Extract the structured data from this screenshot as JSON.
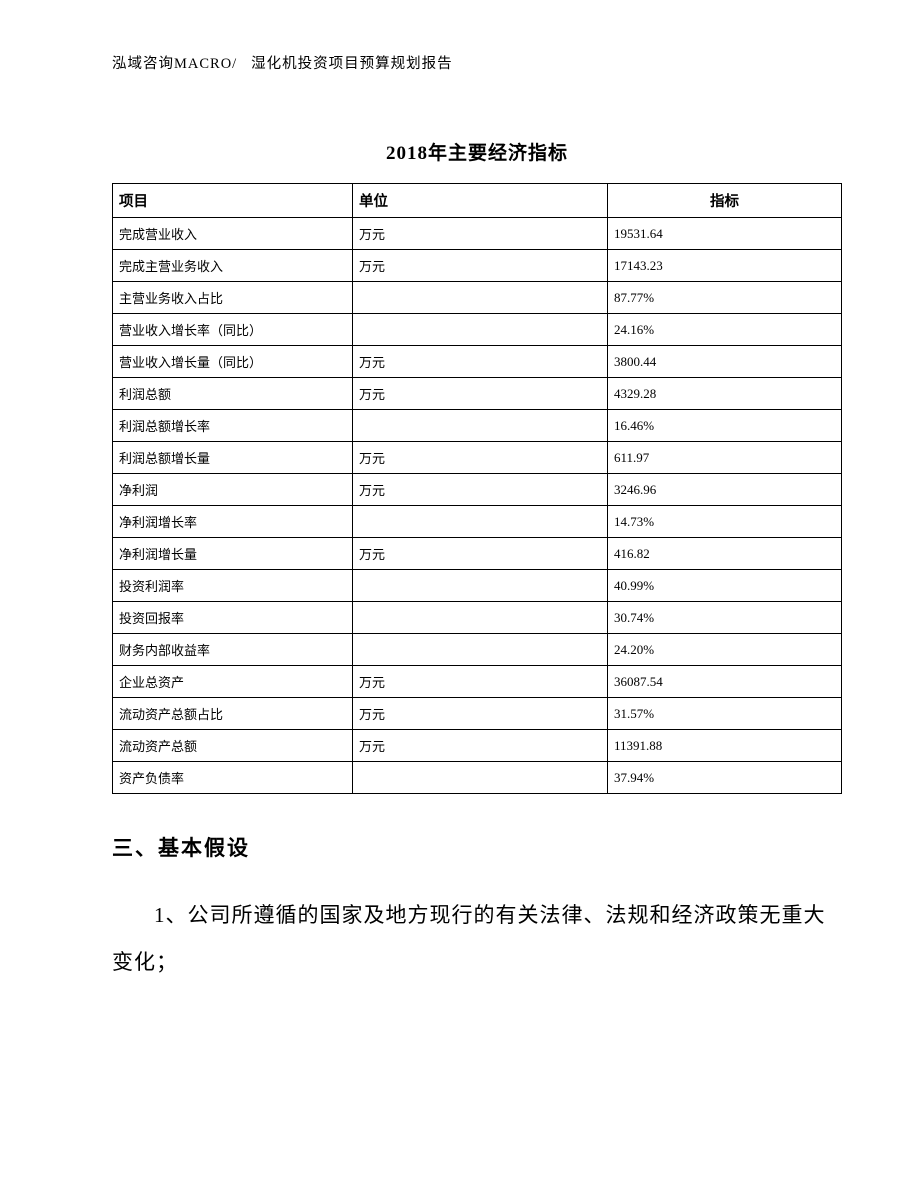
{
  "header": {
    "company": "泓域咨询MACRO/",
    "report_name": "湿化机投资项目预算规划报告"
  },
  "table": {
    "title": "2018年主要经济指标",
    "columns": {
      "item": "项目",
      "unit": "单位",
      "value": "指标"
    },
    "rows": [
      {
        "item": "完成营业收入",
        "unit": "万元",
        "value": "19531.64"
      },
      {
        "item": "完成主营业务收入",
        "unit": "万元",
        "value": "17143.23"
      },
      {
        "item": "主营业务收入占比",
        "unit": "",
        "value": "87.77%"
      },
      {
        "item": "营业收入增长率（同比）",
        "unit": "",
        "value": "24.16%"
      },
      {
        "item": "营业收入增长量（同比）",
        "unit": "万元",
        "value": "3800.44"
      },
      {
        "item": "利润总额",
        "unit": "万元",
        "value": "4329.28"
      },
      {
        "item": "利润总额增长率",
        "unit": "",
        "value": "16.46%"
      },
      {
        "item": "利润总额增长量",
        "unit": "万元",
        "value": "611.97"
      },
      {
        "item": "净利润",
        "unit": "万元",
        "value": "3246.96"
      },
      {
        "item": "净利润增长率",
        "unit": "",
        "value": "14.73%"
      },
      {
        "item": "净利润增长量",
        "unit": "万元",
        "value": "416.82"
      },
      {
        "item": "投资利润率",
        "unit": "",
        "value": "40.99%"
      },
      {
        "item": "投资回报率",
        "unit": "",
        "value": "30.74%"
      },
      {
        "item": "财务内部收益率",
        "unit": "",
        "value": "24.20%"
      },
      {
        "item": "企业总资产",
        "unit": "万元",
        "value": "36087.54"
      },
      {
        "item": "流动资产总额占比",
        "unit": "万元",
        "value": "31.57%"
      },
      {
        "item": "流动资产总额",
        "unit": "万元",
        "value": "11391.88"
      },
      {
        "item": "资产负债率",
        "unit": "",
        "value": "37.94%"
      }
    ]
  },
  "section": {
    "heading": "三、基本假设",
    "paragraph_1": "1、公司所遵循的国家及地方现行的有关法律、法规和经济政策无重大变化；"
  }
}
